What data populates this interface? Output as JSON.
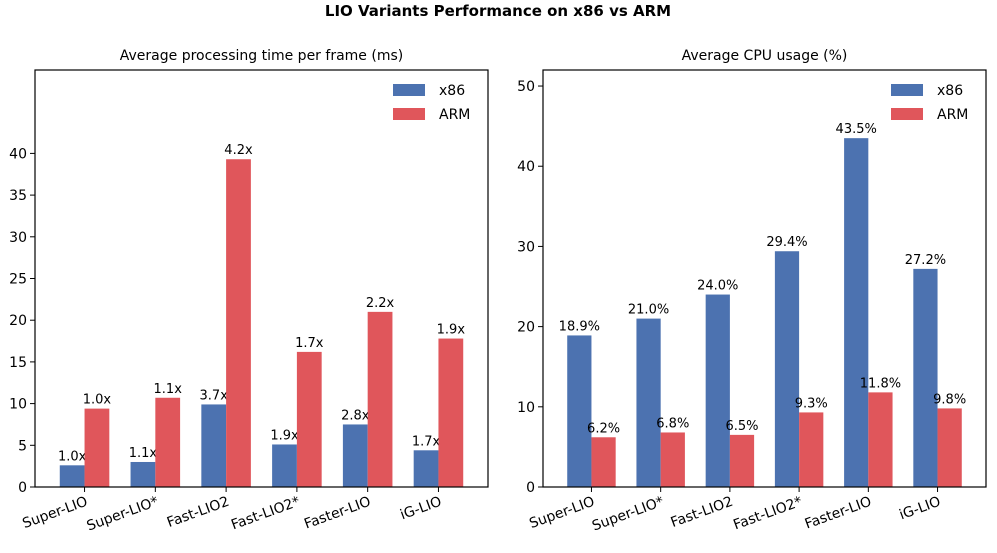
{
  "figure_title": "LIO Variants Performance on x86 vs ARM",
  "colors": {
    "x86": "#4c72b0",
    "ARM": "#e0565b"
  },
  "chart_data": [
    {
      "type": "bar",
      "title": "Average processing time per frame (ms)",
      "xlabel": "",
      "ylabel": "",
      "categories": [
        "Super-LIO",
        "Super-LIO*",
        "Fast-LIO2",
        "Fast-LIO2*",
        "Faster-LIO",
        "iG-LIO"
      ],
      "series": [
        {
          "name": "x86",
          "values": [
            2.6,
            3.0,
            9.9,
            5.1,
            7.5,
            4.4
          ],
          "labels": [
            "1.0x",
            "1.1x",
            "3.7x",
            "1.9x",
            "2.8x",
            "1.7x"
          ]
        },
        {
          "name": "ARM",
          "values": [
            9.4,
            10.7,
            39.3,
            16.2,
            21.0,
            17.8
          ],
          "labels": [
            "1.0x",
            "1.1x",
            "4.2x",
            "1.7x",
            "2.2x",
            "1.9x"
          ]
        }
      ],
      "ylim": [
        0,
        50
      ],
      "yticks": [
        "0",
        "5",
        "10",
        "15",
        "20",
        "25",
        "30",
        "35",
        "40"
      ],
      "ytick_values": [
        0,
        5,
        10,
        15,
        20,
        25,
        30,
        35,
        40
      ],
      "legend": "top-right"
    },
    {
      "type": "bar",
      "title": "Average CPU usage (%)",
      "xlabel": "",
      "ylabel": "",
      "categories": [
        "Super-LIO",
        "Super-LIO*",
        "Fast-LIO2",
        "Fast-LIO2*",
        "Faster-LIO",
        "iG-LIO"
      ],
      "series": [
        {
          "name": "x86",
          "values": [
            18.9,
            21.0,
            24.0,
            29.4,
            43.5,
            27.2
          ],
          "labels": [
            "18.9%",
            "21.0%",
            "24.0%",
            "29.4%",
            "43.5%",
            "27.2%"
          ]
        },
        {
          "name": "ARM",
          "values": [
            6.2,
            6.8,
            6.5,
            9.3,
            11.8,
            9.8
          ],
          "labels": [
            "6.2%",
            "6.8%",
            "6.5%",
            "9.3%",
            "11.8%",
            "9.8%"
          ]
        }
      ],
      "ylim": [
        0,
        52
      ],
      "yticks": [
        "0",
        "10",
        "20",
        "30",
        "40",
        "50"
      ],
      "ytick_values": [
        0,
        10,
        20,
        30,
        40,
        50
      ],
      "legend": "top-right"
    }
  ]
}
